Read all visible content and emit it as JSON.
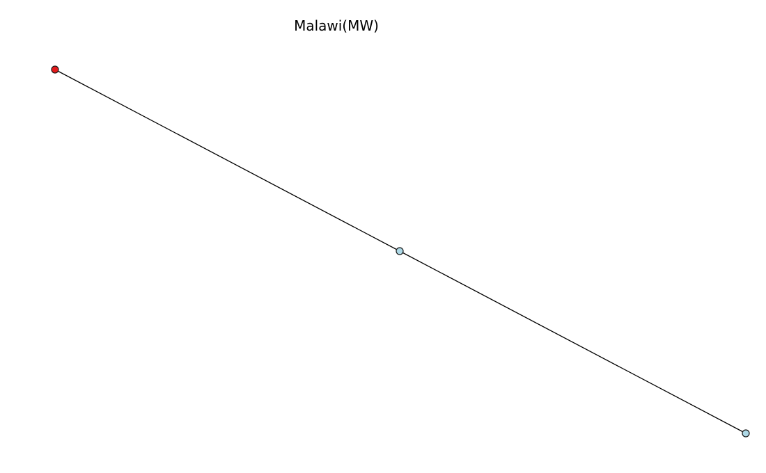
{
  "title": "Malawi(MW)",
  "graph": {
    "nodes": [
      {
        "id": "n0",
        "role": "highlighted",
        "color": "#e31a1c"
      },
      {
        "id": "n1",
        "role": "normal",
        "color": "#add8e6"
      },
      {
        "id": "n2",
        "role": "normal",
        "color": "#add8e6"
      }
    ],
    "edges": [
      {
        "source": "n0",
        "target": "n1"
      },
      {
        "source": "n1",
        "target": "n2"
      }
    ],
    "edge_color": "#000000",
    "node_outline_color": "#1a1a1a"
  }
}
